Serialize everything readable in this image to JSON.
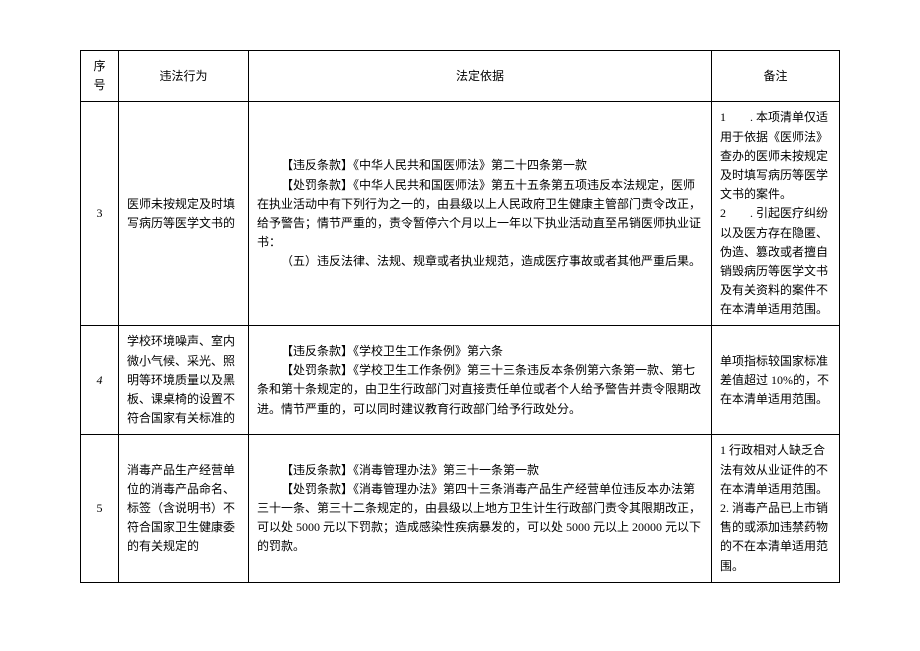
{
  "header": {
    "seq": "序号",
    "violation": "违法行为",
    "basis": "法定依据",
    "remark": "备注"
  },
  "rows": [
    {
      "seq": "3",
      "violation": "医师未按规定及时填写病历等医学文书的",
      "basis_l1": "【违反条款】《中华人民共和国医师法》第二十四条第一款",
      "basis_l2": "【处罚条款】《中华人民共和国医师法》第五十五条第五项违反本法规定，医师在执业活动中有下列行为之一的，由县级以上人民政府卫生健康主管部门责令改正，给予警告；情节严重的，责令暂停六个月以上一年以下执业活动直至吊销医师执业证书：",
      "basis_l3": "（五）违反法律、法规、规章或者执业规范，造成医疗事故或者其他严重后果。",
      "remark_l1": "1　　. 本项清单仅适用于依据《医师法》查办的医师未按规定及时填写病历等医学文书的案件。",
      "remark_l2": "2　　. 引起医疗纠纷以及医方存在隐匿、伪造、篡改或者擅自销毁病历等医学文书及有关资料的案件不在本清单适用范围。"
    },
    {
      "seq": "4",
      "seq_italic": true,
      "violation": "学校环境噪声、室内微小气候、采光、照明等环境质量以及黑板、课桌椅的设置不符合国家有关标准的",
      "basis_l1": "【违反条款】《学校卫生工作条例》第六条",
      "basis_l2": "【处罚条款】《学校卫生工作条例》第三十三条违反本条例第六条第一款、第七条和第十条规定的，由卫生行政部门对直接责任单位或者个人给予警告并责令限期改进。情节严重的，可以同时建议教育行政部门给予行政处分。",
      "remark": "单项指标较国家标准差值超过 10%的，不在本清单适用范围。"
    },
    {
      "seq": "5",
      "violation": "消毒产品生产经营单位的消毒产品命名、标签（含说明书）不符合国家卫生健康委的有关规定的",
      "basis_l1": "【违反条款】《消毒管理办法》第三十一条第一款",
      "basis_l2": "【处罚条款】《消毒管理办法》第四十三条消毒产品生产经营单位违反本办法第三十一条、第三十二条规定的，由县级以上地方卫生计生行政部门责令其限期改正，可以处 5000 元以下罚款；造成感染性疾病暴发的，可以处 5000 元以上 20000 元以下的罚款。",
      "remark_l1": "1 行政相对人缺乏合法有效从业证件的不在本清单适用范围。",
      "remark_l2": "2. 消毒产品已上市销售的或添加违禁药物的不在本清单适用范围。"
    }
  ]
}
